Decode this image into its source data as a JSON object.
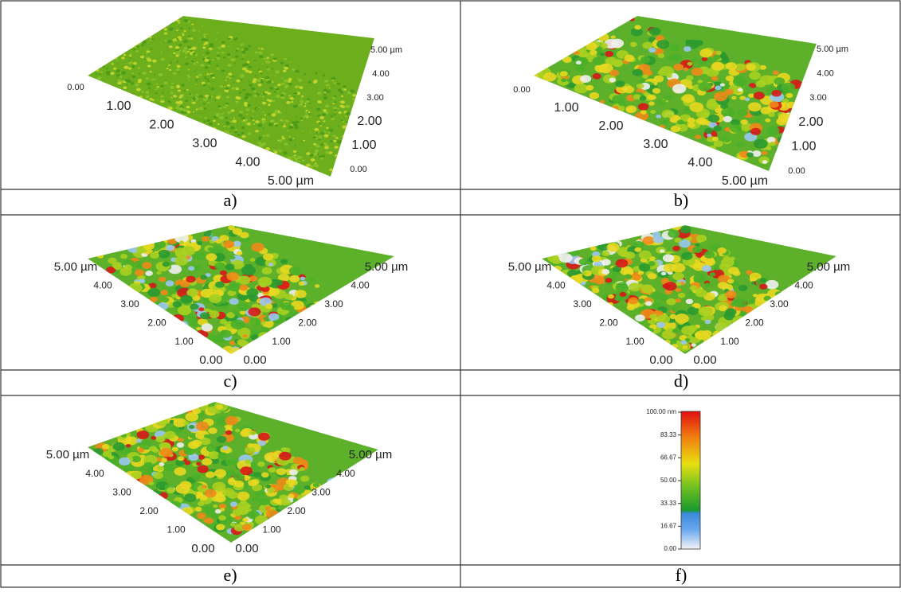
{
  "panels": [
    {
      "label": "a)",
      "axis1": [
        "0.00",
        "1.00",
        "2.00",
        "3.00",
        "4.00",
        "5.00 µm"
      ],
      "axis2": [
        "0.00",
        "1.00",
        "2.00",
        "3.00",
        "4.00",
        "5.00 µm"
      ]
    },
    {
      "label": "b)",
      "axis1": [
        "0.00",
        "1.00",
        "2.00",
        "3.00",
        "4.00",
        "5.00 µm"
      ],
      "axis2": [
        "0.00",
        "1.00",
        "2.00",
        "3.00",
        "4.00",
        "5.00 µm"
      ]
    },
    {
      "label": "c)",
      "axis1": [
        "5.00 µm",
        "4.00",
        "3.00",
        "2.00",
        "1.00",
        "0.00"
      ],
      "axis2": [
        "0.00",
        "1.00",
        "2.00",
        "3.00",
        "4.00",
        "5.00 µm"
      ]
    },
    {
      "label": "d)",
      "axis1": [
        "5.00 µm",
        "4.00",
        "3.00",
        "2.00",
        "1.00",
        "0.00"
      ],
      "axis2": [
        "0.00",
        "1.00",
        "2.00",
        "3.00",
        "4.00",
        "5.00 µm"
      ]
    },
    {
      "label": "e)",
      "axis1": [
        "5.00 µm",
        "4.00",
        "3.00",
        "2.00",
        "1.00",
        "0.00"
      ],
      "axis2": [
        "0.00",
        "1.00",
        "2.00",
        "3.00",
        "4.00",
        "5.00 µm"
      ]
    }
  ],
  "colorbar": {
    "label": "f)",
    "ticks": [
      "100.00 nm",
      "83.33",
      "66.67",
      "50.00",
      "33.33",
      "16.67",
      "0.00"
    ]
  }
}
